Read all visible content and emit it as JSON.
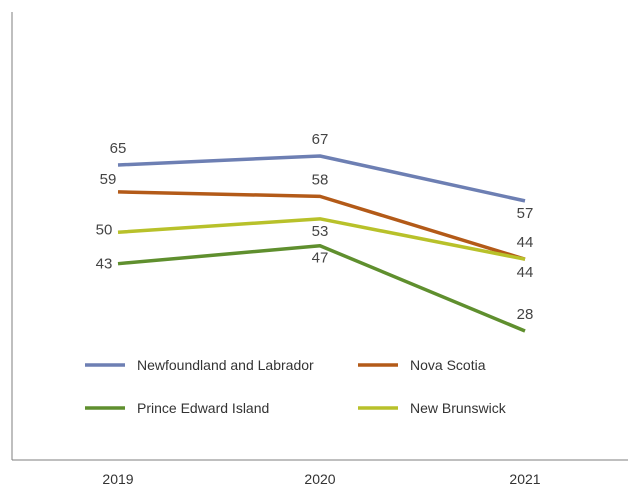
{
  "chart_data": {
    "type": "line",
    "categories": [
      "2019",
      "2020",
      "2021"
    ],
    "series": [
      {
        "name": "Newfoundland and Labrador",
        "values": [
          65,
          67,
          57
        ],
        "color": "#6d7fb3"
      },
      {
        "name": "Nova Scotia",
        "values": [
          59,
          58,
          44
        ],
        "color": "#b35a18"
      },
      {
        "name": "Prince Edward Island",
        "values": [
          43,
          47,
          28
        ],
        "color": "#5f8f2e"
      },
      {
        "name": "New Brunswick",
        "values": [
          50,
          53,
          44
        ],
        "color": "#b8c12a"
      }
    ],
    "title": "",
    "xlabel": "",
    "ylabel": "",
    "ylim": [
      0,
      100
    ],
    "grid": false,
    "legend_position": "inside-bottom"
  }
}
